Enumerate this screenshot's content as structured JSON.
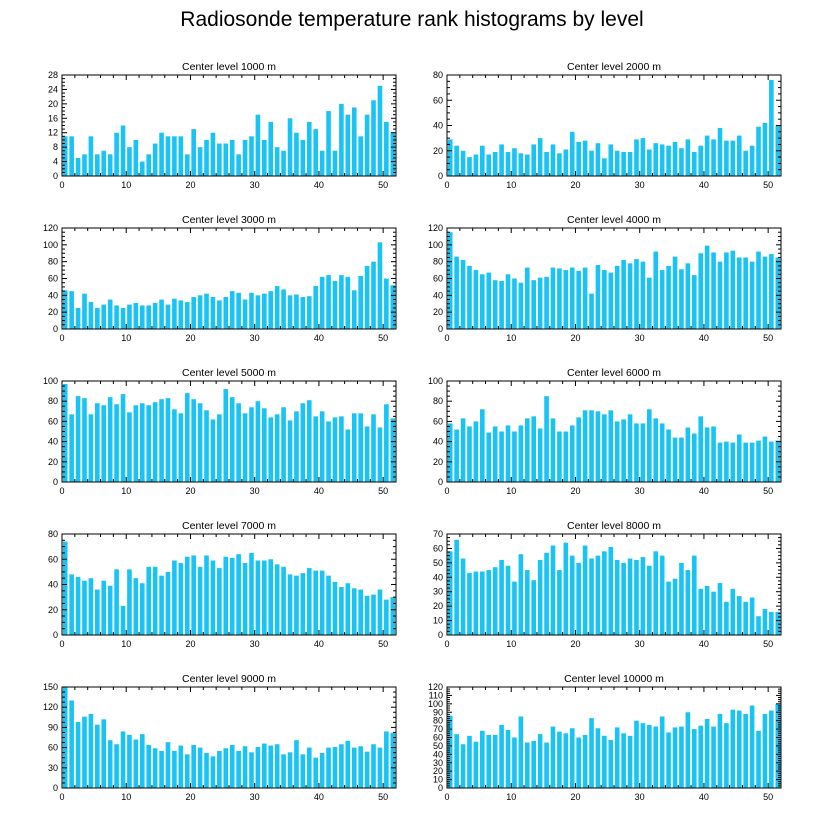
{
  "figure_title": "Radiosonde temperature rank histograms by level",
  "colors": {
    "bar": "#19c4f5",
    "axis": "#000000"
  },
  "chart_data": [
    {
      "type": "bar",
      "title": "Center level 1000 m",
      "ylim": [
        0,
        28
      ],
      "yticks": [
        0,
        4,
        8,
        12,
        16,
        20,
        24,
        28
      ],
      "xlim": [
        0,
        52
      ],
      "xticks": [
        0,
        10,
        20,
        30,
        40,
        50
      ],
      "x": [
        0,
        1,
        2,
        3,
        4,
        5,
        6,
        7,
        8,
        9,
        10,
        11,
        12,
        13,
        14,
        15,
        16,
        17,
        18,
        19,
        20,
        21,
        22,
        23,
        24,
        25,
        26,
        27,
        28,
        29,
        30,
        31,
        32,
        33,
        34,
        35,
        36,
        37,
        38,
        39,
        40,
        41,
        42,
        43,
        44,
        45,
        46,
        47,
        48,
        49,
        50,
        51
      ],
      "values": [
        11,
        11,
        5,
        6,
        11,
        6,
        7,
        6,
        12,
        14,
        8,
        10,
        4,
        6,
        9,
        12,
        11,
        11,
        11,
        6,
        13,
        8,
        10,
        12,
        9,
        9,
        10,
        6,
        10,
        11,
        17,
        10,
        15,
        8,
        7,
        16,
        12,
        10,
        15,
        13,
        7,
        18,
        7,
        20,
        17,
        19,
        11,
        17,
        21,
        25,
        15,
        12
      ]
    },
    {
      "type": "bar",
      "title": "Center level 2000 m",
      "ylim": [
        0,
        80
      ],
      "yticks": [
        0,
        20,
        40,
        60,
        80
      ],
      "xlim": [
        0,
        52
      ],
      "xticks": [
        0,
        10,
        20,
        30,
        40,
        50
      ],
      "x": [
        0,
        1,
        2,
        3,
        4,
        5,
        6,
        7,
        8,
        9,
        10,
        11,
        12,
        13,
        14,
        15,
        16,
        17,
        18,
        19,
        20,
        21,
        22,
        23,
        24,
        25,
        26,
        27,
        28,
        29,
        30,
        31,
        32,
        33,
        34,
        35,
        36,
        37,
        38,
        39,
        40,
        41,
        42,
        43,
        44,
        45,
        46,
        47,
        48,
        49,
        50,
        51
      ],
      "values": [
        29,
        24,
        20,
        15,
        17,
        24,
        17,
        19,
        25,
        19,
        22,
        18,
        17,
        25,
        30,
        19,
        25,
        18,
        21,
        35,
        27,
        28,
        20,
        26,
        14,
        25,
        20,
        19,
        19,
        29,
        30,
        21,
        26,
        25,
        24,
        27,
        22,
        29,
        19,
        24,
        32,
        29,
        38,
        28,
        28,
        32,
        20,
        24,
        39,
        42,
        76,
        40
      ]
    },
    {
      "type": "bar",
      "title": "Center level 3000 m",
      "ylim": [
        0,
        120
      ],
      "yticks": [
        0,
        20,
        40,
        60,
        80,
        100,
        120
      ],
      "xlim": [
        0,
        52
      ],
      "xticks": [
        0,
        10,
        20,
        30,
        40,
        50
      ],
      "x": [
        0,
        1,
        2,
        3,
        4,
        5,
        6,
        7,
        8,
        9,
        10,
        11,
        12,
        13,
        14,
        15,
        16,
        17,
        18,
        19,
        20,
        21,
        22,
        23,
        24,
        25,
        26,
        27,
        28,
        29,
        30,
        31,
        32,
        33,
        34,
        35,
        36,
        37,
        38,
        39,
        40,
        41,
        42,
        43,
        44,
        45,
        46,
        47,
        48,
        49,
        50,
        51
      ],
      "values": [
        46,
        45,
        25,
        42,
        32,
        25,
        29,
        35,
        28,
        25,
        29,
        31,
        28,
        28,
        31,
        35,
        29,
        36,
        34,
        32,
        38,
        40,
        42,
        38,
        34,
        38,
        45,
        43,
        35,
        43,
        40,
        42,
        45,
        51,
        47,
        40,
        41,
        38,
        39,
        51,
        62,
        64,
        57,
        64,
        62,
        46,
        63,
        75,
        80,
        103,
        60,
        52
      ]
    },
    {
      "type": "bar",
      "title": "Center level 4000 m",
      "ylim": [
        0,
        120
      ],
      "yticks": [
        0,
        20,
        40,
        60,
        80,
        100,
        120
      ],
      "xlim": [
        0,
        52
      ],
      "xticks": [
        0,
        10,
        20,
        30,
        40,
        50
      ],
      "x": [
        0,
        1,
        2,
        3,
        4,
        5,
        6,
        7,
        8,
        9,
        10,
        11,
        12,
        13,
        14,
        15,
        16,
        17,
        18,
        19,
        20,
        21,
        22,
        23,
        24,
        25,
        26,
        27,
        28,
        29,
        30,
        31,
        32,
        33,
        34,
        35,
        36,
        37,
        38,
        39,
        40,
        41,
        42,
        43,
        44,
        45,
        46,
        47,
        48,
        49,
        50,
        51
      ],
      "values": [
        115,
        86,
        82,
        75,
        70,
        65,
        67,
        58,
        57,
        65,
        60,
        55,
        73,
        58,
        61,
        62,
        73,
        72,
        70,
        73,
        69,
        73,
        42,
        76,
        70,
        67,
        75,
        82,
        78,
        83,
        80,
        61,
        92,
        70,
        75,
        86,
        71,
        78,
        64,
        90,
        99,
        91,
        80,
        91,
        93,
        85,
        85,
        80,
        92,
        86,
        89,
        85
      ]
    },
    {
      "type": "bar",
      "title": "Center level 5000 m",
      "ylim": [
        0,
        100
      ],
      "yticks": [
        0,
        20,
        40,
        60,
        80,
        100
      ],
      "xlim": [
        0,
        52
      ],
      "xticks": [
        0,
        10,
        20,
        30,
        40,
        50
      ],
      "x": [
        0,
        1,
        2,
        3,
        4,
        5,
        6,
        7,
        8,
        9,
        10,
        11,
        12,
        13,
        14,
        15,
        16,
        17,
        18,
        19,
        20,
        21,
        22,
        23,
        24,
        25,
        26,
        27,
        28,
        29,
        30,
        31,
        32,
        33,
        34,
        35,
        36,
        37,
        38,
        39,
        40,
        41,
        42,
        43,
        44,
        45,
        46,
        47,
        48,
        49,
        50,
        51
      ],
      "values": [
        97,
        67,
        85,
        83,
        67,
        78,
        76,
        84,
        77,
        87,
        69,
        76,
        78,
        76,
        79,
        82,
        83,
        72,
        68,
        88,
        82,
        78,
        71,
        62,
        67,
        92,
        84,
        78,
        68,
        74,
        80,
        73,
        64,
        67,
        74,
        61,
        70,
        78,
        81,
        65,
        70,
        60,
        64,
        65,
        52,
        68,
        68,
        55,
        67,
        54,
        77,
        63
      ]
    },
    {
      "type": "bar",
      "title": "Center level 6000 m",
      "ylim": [
        0,
        100
      ],
      "yticks": [
        0,
        20,
        40,
        60,
        80,
        100
      ],
      "xlim": [
        0,
        52
      ],
      "xticks": [
        0,
        10,
        20,
        30,
        40,
        50
      ],
      "x": [
        0,
        1,
        2,
        3,
        4,
        5,
        6,
        7,
        8,
        9,
        10,
        11,
        12,
        13,
        14,
        15,
        16,
        17,
        18,
        19,
        20,
        21,
        22,
        23,
        24,
        25,
        26,
        27,
        28,
        29,
        30,
        31,
        32,
        33,
        34,
        35,
        36,
        37,
        38,
        39,
        40,
        41,
        42,
        43,
        44,
        45,
        46,
        47,
        48,
        49,
        50,
        51
      ],
      "values": [
        58,
        52,
        63,
        55,
        60,
        72,
        49,
        55,
        50,
        56,
        50,
        56,
        63,
        65,
        53,
        85,
        63,
        50,
        50,
        56,
        64,
        71,
        71,
        70,
        67,
        71,
        60,
        62,
        67,
        58,
        58,
        72,
        63,
        58,
        52,
        44,
        44,
        54,
        48,
        65,
        54,
        55,
        39,
        40,
        39,
        47,
        39,
        39,
        41,
        45,
        40,
        41
      ]
    },
    {
      "type": "bar",
      "title": "Center level 7000 m",
      "ylim": [
        0,
        80
      ],
      "yticks": [
        0,
        20,
        40,
        60,
        80
      ],
      "xlim": [
        0,
        52
      ],
      "xticks": [
        0,
        10,
        20,
        30,
        40,
        50
      ],
      "x": [
        0,
        1,
        2,
        3,
        4,
        5,
        6,
        7,
        8,
        9,
        10,
        11,
        12,
        13,
        14,
        15,
        16,
        17,
        18,
        19,
        20,
        21,
        22,
        23,
        24,
        25,
        26,
        27,
        28,
        29,
        30,
        31,
        32,
        33,
        34,
        35,
        36,
        37,
        38,
        39,
        40,
        41,
        42,
        43,
        44,
        45,
        46,
        47,
        48,
        49,
        50,
        51
      ],
      "values": [
        74,
        48,
        46,
        43,
        45,
        36,
        43,
        39,
        52,
        23,
        52,
        45,
        41,
        54,
        54,
        47,
        50,
        59,
        57,
        62,
        63,
        54,
        63,
        59,
        53,
        62,
        61,
        64,
        57,
        65,
        59,
        59,
        60,
        56,
        54,
        48,
        47,
        49,
        53,
        51,
        51,
        47,
        42,
        38,
        41,
        37,
        36,
        31,
        32,
        36,
        28,
        30
      ]
    },
    {
      "type": "bar",
      "title": "Center level 8000 m",
      "ylim": [
        0,
        70
      ],
      "yticks": [
        0,
        10,
        20,
        30,
        40,
        50,
        60,
        70
      ],
      "xlim": [
        0,
        52
      ],
      "xticks": [
        0,
        10,
        20,
        30,
        40,
        50
      ],
      "x": [
        0,
        1,
        2,
        3,
        4,
        5,
        6,
        7,
        8,
        9,
        10,
        11,
        12,
        13,
        14,
        15,
        16,
        17,
        18,
        19,
        20,
        21,
        22,
        23,
        24,
        25,
        26,
        27,
        28,
        29,
        30,
        31,
        32,
        33,
        34,
        35,
        36,
        37,
        38,
        39,
        40,
        41,
        42,
        43,
        44,
        45,
        46,
        47,
        48,
        49,
        50,
        51
      ],
      "values": [
        58,
        66,
        53,
        43,
        44,
        44,
        45,
        47,
        52,
        48,
        37,
        56,
        45,
        38,
        52,
        57,
        62,
        45,
        64,
        55,
        50,
        62,
        53,
        55,
        58,
        61,
        52,
        50,
        53,
        52,
        54,
        48,
        58,
        55,
        37,
        39,
        50,
        45,
        55,
        32,
        34,
        30,
        36,
        23,
        32,
        27,
        23,
        26,
        13,
        18,
        16,
        16
      ]
    },
    {
      "type": "bar",
      "title": "Center level 9000 m",
      "ylim": [
        0,
        150
      ],
      "yticks": [
        0,
        30,
        60,
        90,
        120,
        150
      ],
      "xlim": [
        0,
        52
      ],
      "xticks": [
        0,
        10,
        20,
        30,
        40,
        50
      ],
      "x": [
        0,
        1,
        2,
        3,
        4,
        5,
        6,
        7,
        8,
        9,
        10,
        11,
        12,
        13,
        14,
        15,
        16,
        17,
        18,
        19,
        20,
        21,
        22,
        23,
        24,
        25,
        26,
        27,
        28,
        29,
        30,
        31,
        32,
        33,
        34,
        35,
        36,
        37,
        38,
        39,
        40,
        41,
        42,
        43,
        44,
        45,
        46,
        47,
        48,
        49,
        50,
        51
      ],
      "values": [
        150,
        130,
        98,
        106,
        110,
        94,
        102,
        71,
        65,
        84,
        79,
        72,
        80,
        64,
        59,
        55,
        68,
        55,
        63,
        50,
        64,
        60,
        52,
        47,
        55,
        59,
        64,
        55,
        62,
        53,
        61,
        66,
        63,
        65,
        50,
        53,
        71,
        50,
        60,
        45,
        52,
        60,
        61,
        65,
        70,
        60,
        62,
        54,
        65,
        60,
        84,
        82
      ]
    },
    {
      "type": "bar",
      "title": "Center level 10000 m",
      "ylim": [
        0,
        120
      ],
      "yticks": [
        0,
        10,
        20,
        30,
        40,
        50,
        60,
        70,
        80,
        90,
        100,
        110,
        120
      ],
      "xlim": [
        0,
        52
      ],
      "xticks": [
        0,
        10,
        20,
        30,
        40,
        50
      ],
      "x": [
        0,
        1,
        2,
        3,
        4,
        5,
        6,
        7,
        8,
        9,
        10,
        11,
        12,
        13,
        14,
        15,
        16,
        17,
        18,
        19,
        20,
        21,
        22,
        23,
        24,
        25,
        26,
        27,
        28,
        29,
        30,
        31,
        32,
        33,
        34,
        35,
        36,
        37,
        38,
        39,
        40,
        41,
        42,
        43,
        44,
        45,
        46,
        47,
        48,
        49,
        50,
        51
      ],
      "values": [
        86,
        64,
        52,
        62,
        55,
        68,
        63,
        63,
        75,
        69,
        60,
        85,
        54,
        56,
        64,
        54,
        73,
        67,
        65,
        71,
        60,
        63,
        83,
        71,
        62,
        57,
        72,
        65,
        62,
        80,
        77,
        75,
        73,
        85,
        66,
        72,
        73,
        90,
        70,
        74,
        82,
        73,
        88,
        77,
        93,
        92,
        88,
        98,
        68,
        88,
        92,
        100
      ]
    }
  ]
}
